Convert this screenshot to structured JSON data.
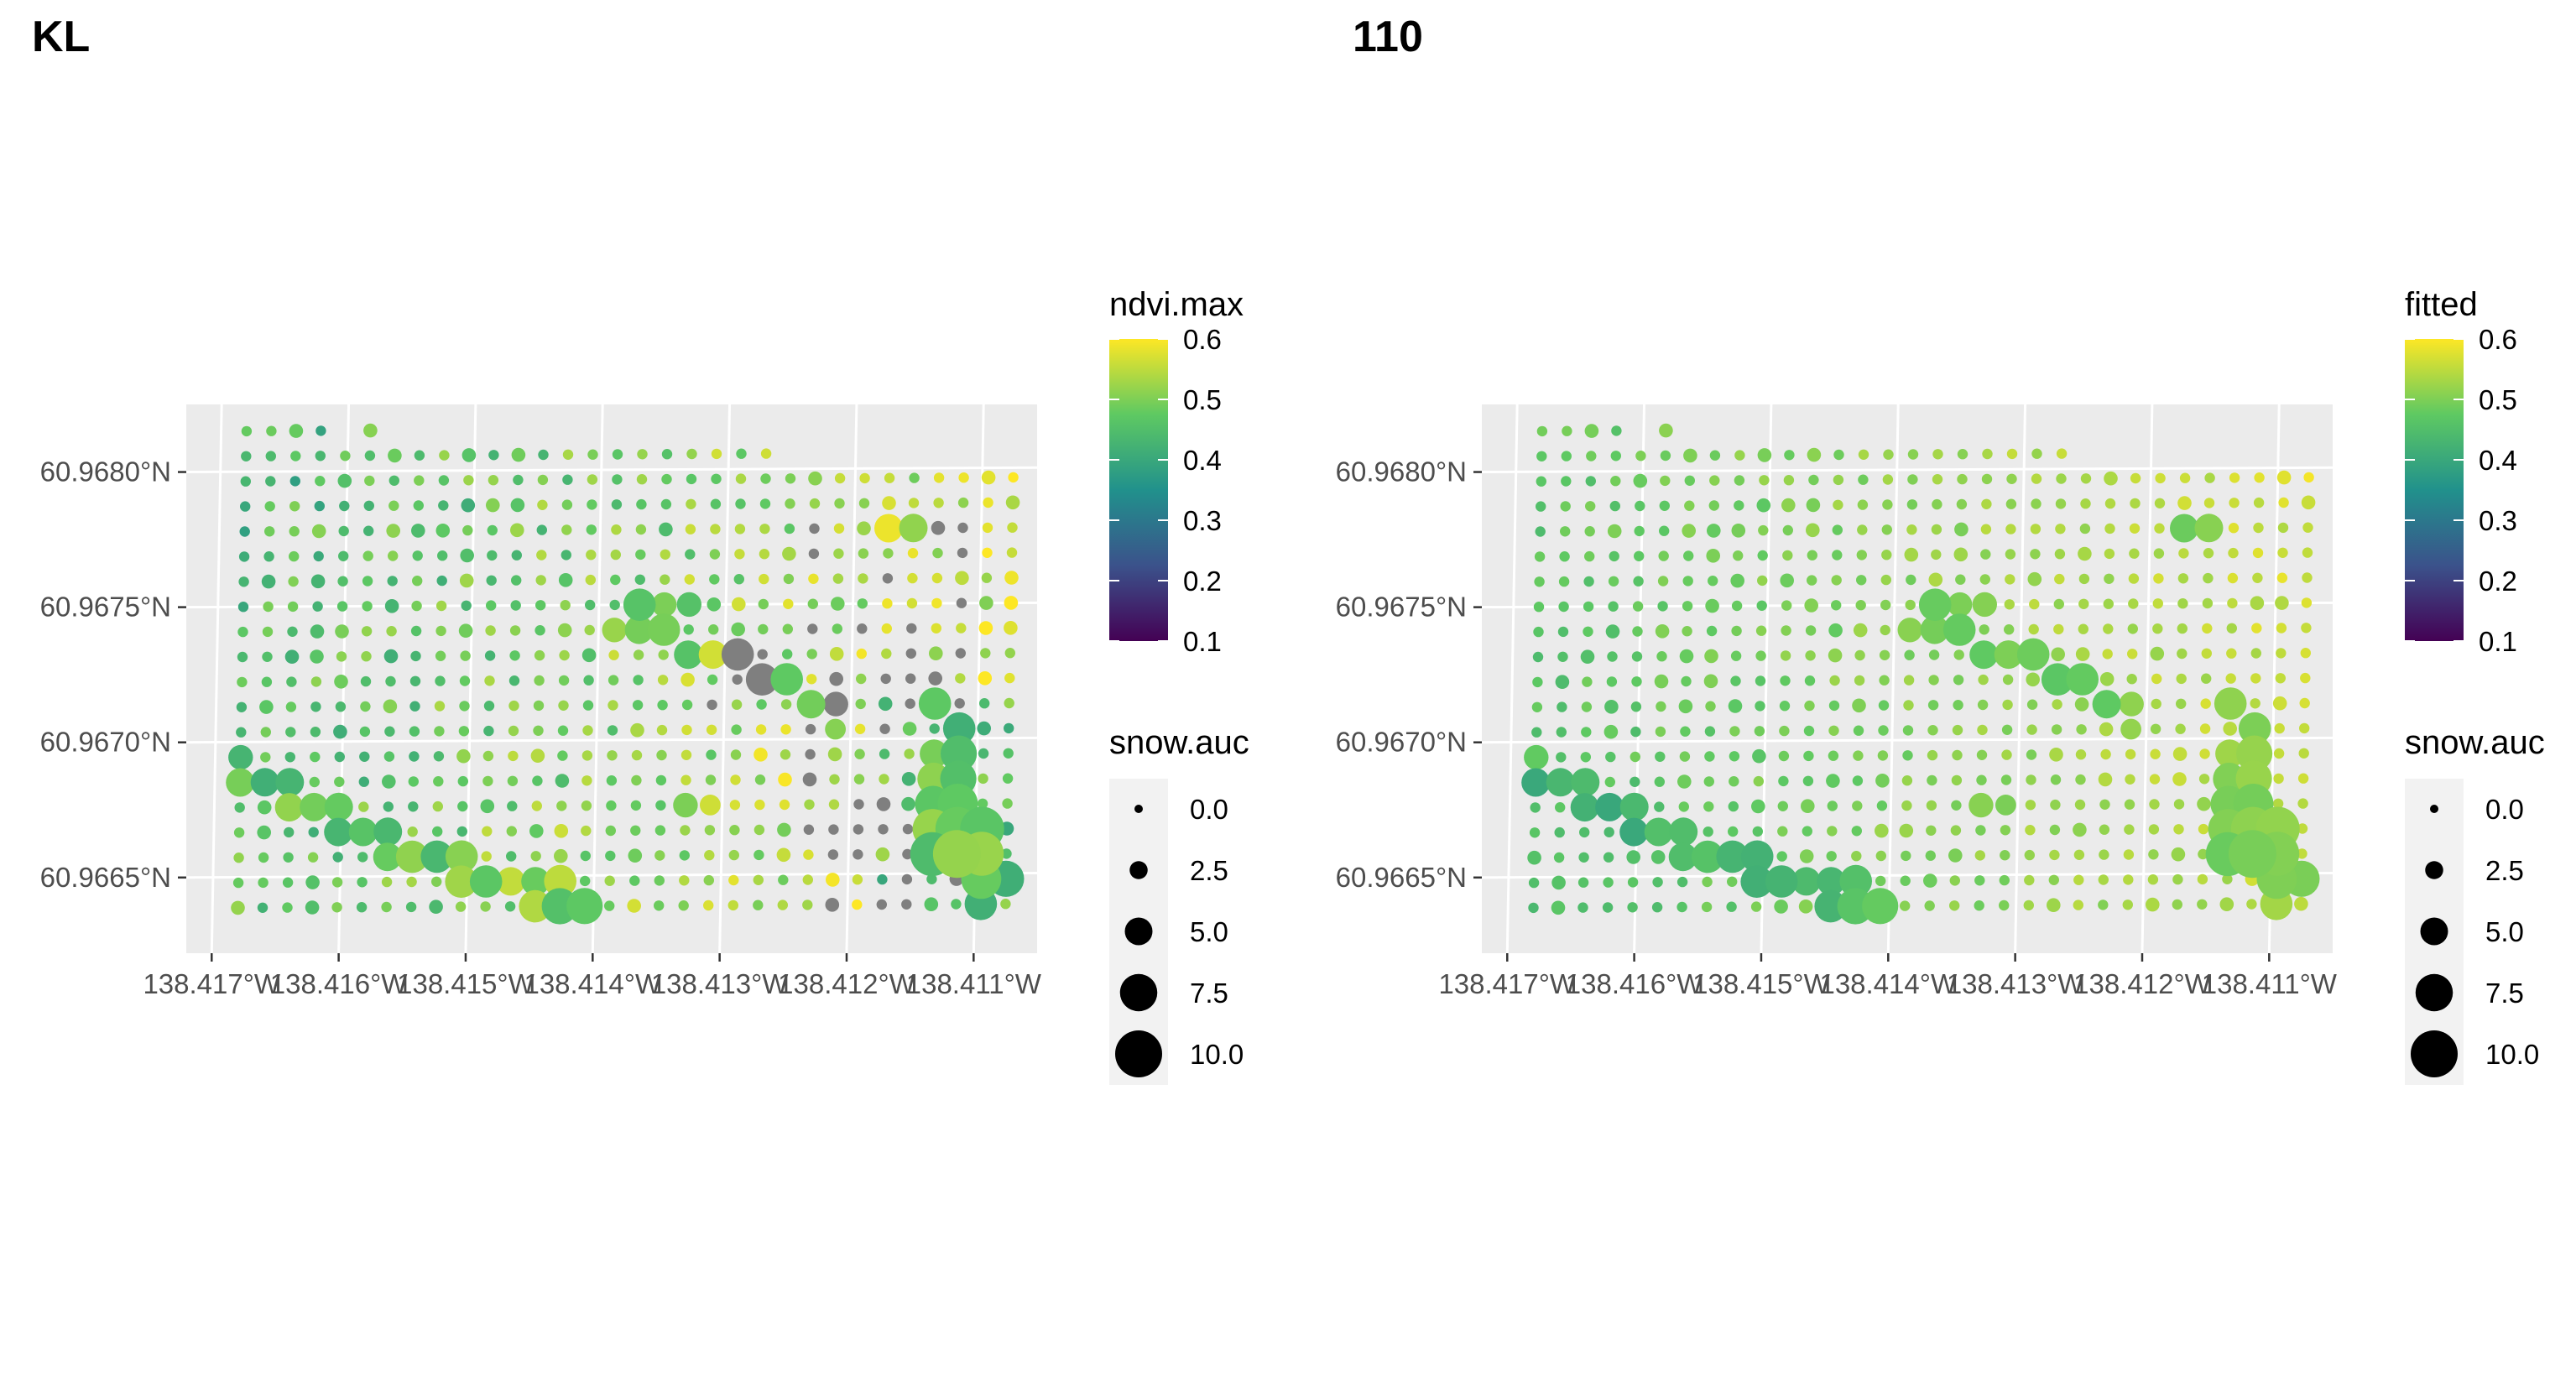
{
  "chart_data": [
    {
      "type": "scatter",
      "title": "KL",
      "xlabel": "",
      "ylabel": "",
      "x_ticks": [
        "138.417°W",
        "138.416°W",
        "138.415°W",
        "138.414°W",
        "138.413°W",
        "138.412°W",
        "138.411°W"
      ],
      "y_ticks": [
        "60.9680°N",
        "60.9675°N",
        "60.9670°N",
        "60.9665°N"
      ],
      "x_tick_values": [
        -138.417,
        -138.416,
        -138.415,
        -138.414,
        -138.413,
        -138.412,
        -138.411
      ],
      "y_tick_values": [
        60.968,
        60.9675,
        60.967,
        60.9665
      ],
      "xlim": [
        -138.4172,
        -138.4105
      ],
      "ylim": [
        60.96622,
        60.96825
      ],
      "grid": true,
      "color_legend": {
        "title": "ndvi.max",
        "labels": [
          "0.6",
          "0.5",
          "0.4",
          "0.3",
          "0.2",
          "0.1"
        ],
        "range": [
          0.1,
          0.6
        ],
        "palette": "viridis",
        "na_color": "#7f7f7f"
      },
      "size_legend": {
        "title": "snow.auc",
        "labels": [
          "0.0",
          "2.5",
          "5.0",
          "7.5",
          "10.0"
        ]
      },
      "variable": "ndvi.max"
    },
    {
      "type": "scatter",
      "title": "110",
      "xlabel": "",
      "ylabel": "",
      "x_ticks": [
        "138.417°W",
        "138.416°W",
        "138.415°W",
        "138.414°W",
        "138.413°W",
        "138.412°W",
        "138.411°W"
      ],
      "y_ticks": [
        "60.9680°N",
        "60.9675°N",
        "60.9670°N",
        "60.9665°N"
      ],
      "x_tick_values": [
        -138.417,
        -138.416,
        -138.415,
        -138.414,
        -138.413,
        -138.412,
        -138.411
      ],
      "y_tick_values": [
        60.968,
        60.9675,
        60.967,
        60.9665
      ],
      "xlim": [
        -138.4172,
        -138.4105
      ],
      "ylim": [
        60.96622,
        60.96825
      ],
      "grid": true,
      "color_legend": {
        "title": "fitted",
        "labels": [
          "0.6",
          "0.5",
          "0.4",
          "0.3",
          "0.2",
          "0.1"
        ],
        "range": [
          0.1,
          0.6
        ],
        "palette": "viridis"
      },
      "size_legend": {
        "title": "snow.auc",
        "labels": [
          "0.0",
          "2.5",
          "5.0",
          "7.5",
          "10.0"
        ]
      },
      "variable": "fitted"
    }
  ],
  "viridis_stops": [
    "#440154",
    "#3b528b",
    "#21918c",
    "#5ec962",
    "#fde725"
  ],
  "plot_background": "#ebebeb",
  "grid_color": "#ffffff"
}
